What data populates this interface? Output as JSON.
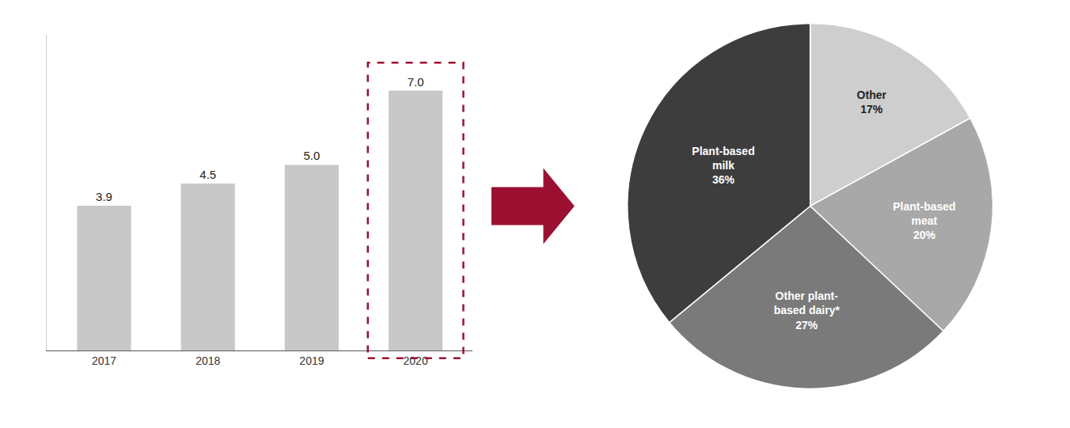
{
  "chart_data": [
    {
      "type": "bar",
      "categories": [
        "2017",
        "2018",
        "2019",
        "2020"
      ],
      "values": [
        3.9,
        4.5,
        5.0,
        7.0
      ],
      "value_labels": [
        "3.9",
        "4.5",
        "5.0",
        "7.0"
      ],
      "color": "#c8c8c8",
      "ylim": [
        0,
        8.5
      ],
      "data_labels": true,
      "tick_labels": "x",
      "grid": false
    },
    {
      "type": "pie",
      "categories": [
        "Other",
        "Plant-based\nmeat",
        "Other plant-\nbased dairy*",
        "Plant-based\nmilk"
      ],
      "values": [
        17,
        20,
        27,
        36
      ],
      "value_labels": [
        "17%",
        "20%",
        "27%",
        "36%"
      ],
      "colors": [
        "#cecece",
        "#a8a8a8",
        "#7a7a7a",
        "#3d3d3d"
      ],
      "data_labels": true
    }
  ]
}
